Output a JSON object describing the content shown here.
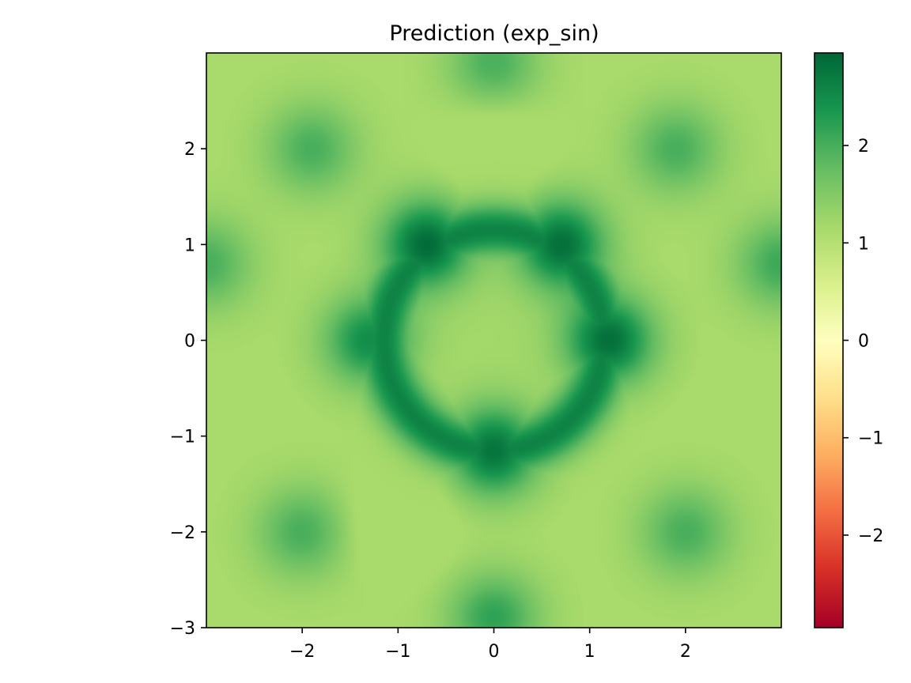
{
  "chart_data": {
    "type": "heatmap",
    "title": "Prediction (exp_sin)",
    "xlabel": "",
    "ylabel": "",
    "xlim": [
      -3,
      3
    ],
    "ylim": [
      -3,
      3
    ],
    "x_ticks": [
      -2,
      -1,
      0,
      1,
      2
    ],
    "x_tick_labels": [
      "−2",
      "−1",
      "0",
      "1",
      "2"
    ],
    "y_ticks": [
      -3,
      -2,
      -1,
      0,
      1,
      2
    ],
    "y_tick_labels": [
      "−3",
      "−2",
      "−1",
      "0",
      "1",
      "2"
    ],
    "colormap": "RdYlGn",
    "colormap_stops": [
      "#a50026",
      "#d73027",
      "#f46d43",
      "#fdae61",
      "#fee08b",
      "#ffffbf",
      "#d9ef8b",
      "#a6d96a",
      "#66bd63",
      "#1a9850",
      "#006837"
    ],
    "colorbar_range": [
      -2.95,
      2.95
    ],
    "colorbar_ticks": [
      -2,
      -1,
      0,
      1,
      2
    ],
    "colorbar_tick_labels": [
      "−2",
      "−1",
      "0",
      "1",
      "2"
    ],
    "grid": false,
    "surface": "z = exp(-0.05*(x^2+y^2))*(sin(x^2+y^2) - 0.15*cos(4*atan2(y,x))*sin(x^2+y^2)) + 1.35 + 0.15*sin(x*2)",
    "features": [
      {
        "x": 0,
        "y": 0,
        "value": 1.2
      },
      {
        "x": -0.7,
        "y": 1.0,
        "value": 2.9
      },
      {
        "x": 0.7,
        "y": 1.0,
        "value": 2.85
      },
      {
        "x": 0.0,
        "y": -1.15,
        "value": 2.8
      },
      {
        "x": 1.2,
        "y": 0.0,
        "value": 2.85
      },
      {
        "x": -1.3,
        "y": 0.0,
        "value": 2.5
      },
      {
        "x": -1.9,
        "y": 2.0,
        "value": 2.0
      },
      {
        "x": 1.9,
        "y": 2.0,
        "value": 2.0
      },
      {
        "x": -2.0,
        "y": -2.0,
        "value": 2.0
      },
      {
        "x": 2.0,
        "y": -2.0,
        "value": 2.0
      },
      {
        "x": 0.0,
        "y": 2.0,
        "value": 0.8
      },
      {
        "x": -1.0,
        "y": -1.9,
        "value": 0.7
      },
      {
        "x": -3.0,
        "y": 0.8,
        "value": 2.0
      },
      {
        "x": 3.0,
        "y": 0.8,
        "value": 2.1
      },
      {
        "x": 0.0,
        "y": 2.9,
        "value": 2.0
      },
      {
        "x": 0.0,
        "y": -2.9,
        "value": 2.2
      }
    ]
  }
}
